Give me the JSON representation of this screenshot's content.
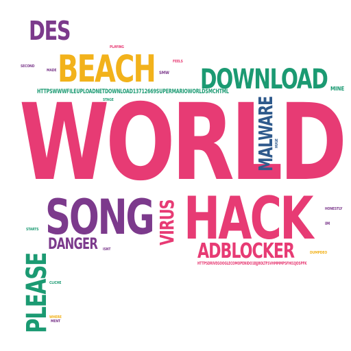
{
  "word_cloud": {
    "colors": {
      "pink": "#e73b74",
      "purple": "#7c3a8c",
      "yellow": "#f2b21b",
      "green": "#1b9a72",
      "blue": "#2f5a8c",
      "grey": "#8a8a8a"
    },
    "words": {
      "world": "WORLD",
      "song": "SONG",
      "hack": "HACK",
      "beach": "BEACH",
      "download": "DOWNLOAD",
      "des": "DES",
      "malware": "MALWARE",
      "virus": "VIRUS",
      "adblocker": "ADBLOCKER",
      "please": "PLEASE",
      "danger": "DANGER",
      "url1": "HTTPSWWWFILEUPLOADNETDOWNLOAD13712669SUPERMARIOWORLDSMCHTML",
      "url2": "HTTPSDRIVEGOOGLECOMOPENIDO1BJJ8OLTFSVHMMMPSFHO2JOSPFK",
      "playing": "PLAYING",
      "second": "SECOND",
      "made": "MADE",
      "smw": "SMW",
      "feels": "FEELS",
      "stage": "STAGE",
      "mine": "MINE",
      "huge": "HUGE",
      "honestly": "HONESTLY",
      "im": "IM",
      "starts": "STARTS",
      "isnt": "ISNT",
      "dumpdeo": "DUMPDEO",
      "cliche": "CLICHE",
      "where": "WHERE",
      "ment": "MENT"
    }
  }
}
